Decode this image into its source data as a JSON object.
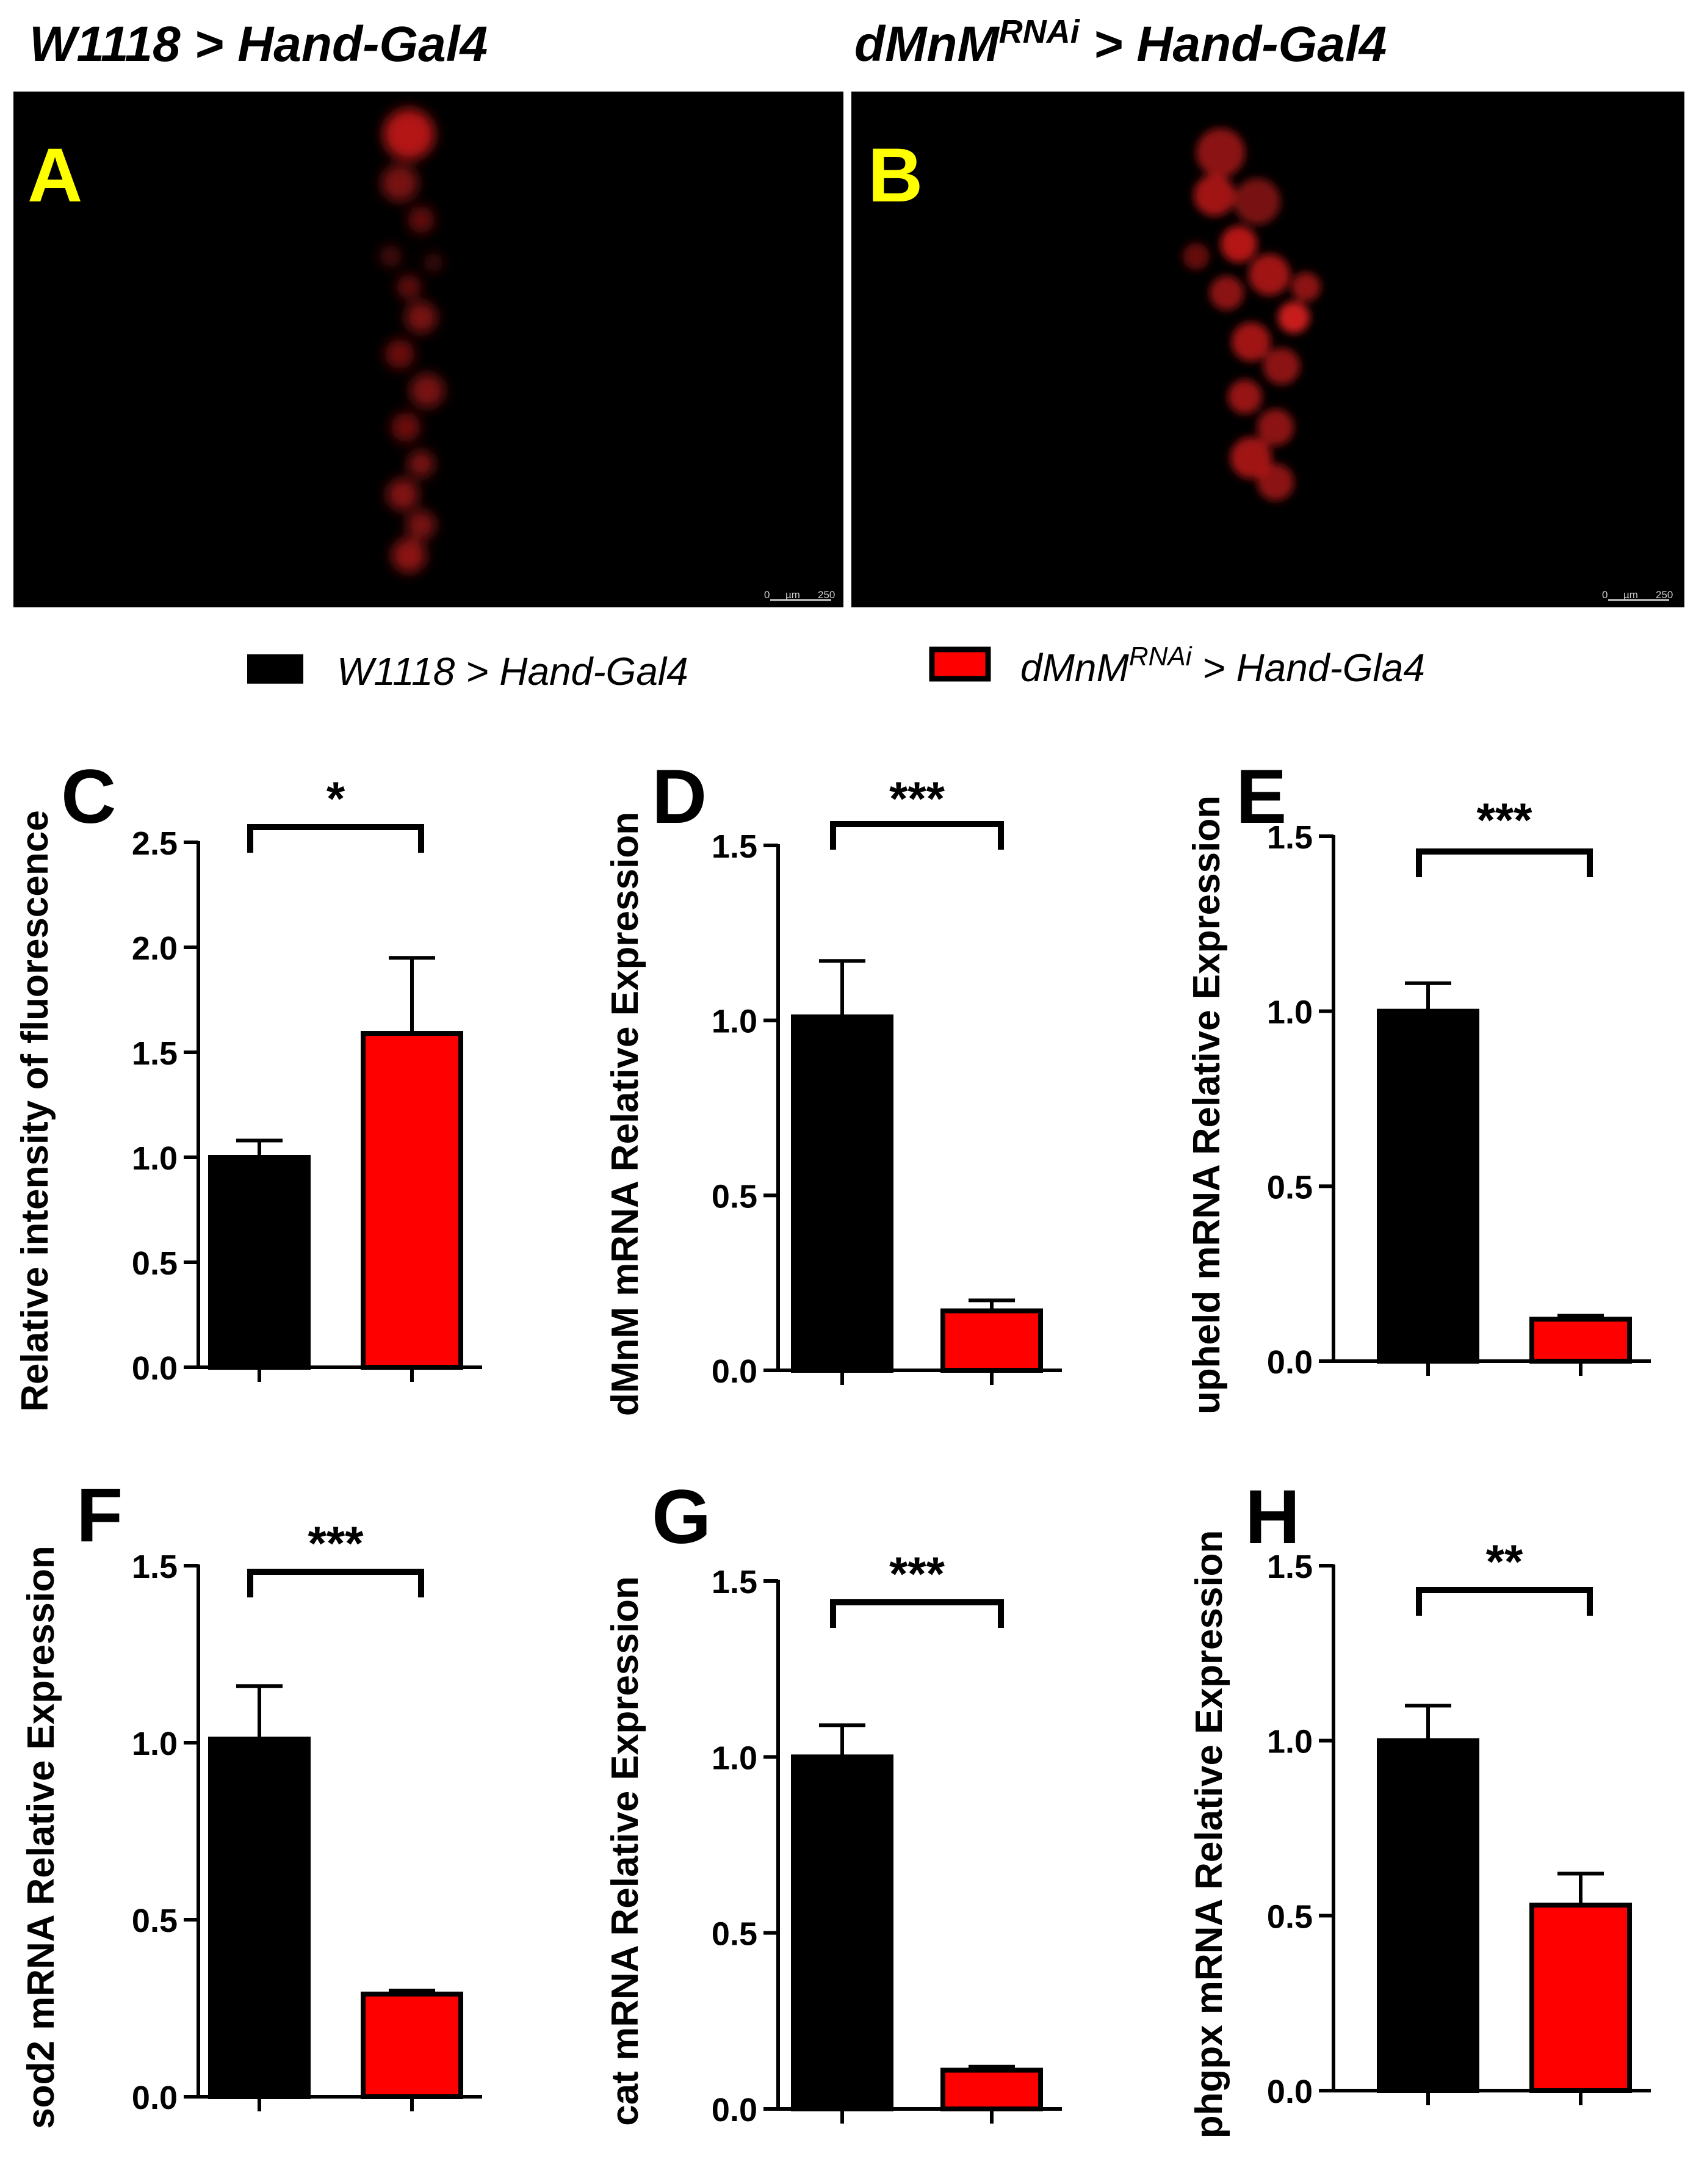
{
  "images": [
    {
      "title_main": "W1118 > Hand-Gal4",
      "title_sup": "",
      "title_rest": "",
      "letter": "A",
      "scale": {
        "left": "0",
        "unit": "µm",
        "right": "250"
      }
    },
    {
      "title_main": "dMnM",
      "title_sup": "RNAi",
      "title_rest": " > Hand-Gal4",
      "letter": "B",
      "scale": {
        "left": "0",
        "unit": "µm",
        "right": "250"
      }
    }
  ],
  "legend": [
    {
      "label_main": "W1118 > Hand-Gal4",
      "label_sup": "",
      "label_rest": "",
      "color": "#000000"
    },
    {
      "label_main": "dMnM",
      "label_sup": "RNAi",
      "label_rest": " > Hand-Gla4",
      "color": "#ff0000"
    }
  ],
  "colors": {
    "control": "#000000",
    "rnai": "#ff0000",
    "letter_image": "#ffff00",
    "letter_chart": "#000000",
    "fluorescence": "#c81a1a"
  },
  "chart_data": [
    {
      "type": "bar",
      "letter": "C",
      "ylabel": "Relative intensity of fluorescence",
      "ylim": [
        0,
        2.5
      ],
      "yticks": [
        "0.0",
        "0.5",
        "1.0",
        "1.5",
        "2.0",
        "2.5"
      ],
      "values": [
        1.0,
        1.59
      ],
      "errors": [
        0.08,
        0.36
      ],
      "significance": "*"
    },
    {
      "type": "bar",
      "letter": "D",
      "ylabel": "dMnM mRNA Relative Expression",
      "ylim": [
        0,
        1.5
      ],
      "yticks": [
        "0.0",
        "0.5",
        "1.0",
        "1.5"
      ],
      "values": [
        1.01,
        0.17
      ],
      "errors": [
        0.16,
        0.03
      ],
      "significance": "***"
    },
    {
      "type": "bar",
      "letter": "E",
      "ylabel": "upheld mRNA Relative Expression",
      "ylim": [
        0,
        1.5
      ],
      "yticks": [
        "0.0",
        "0.5",
        "1.0",
        "1.5"
      ],
      "values": [
        1.0,
        0.12
      ],
      "errors": [
        0.08,
        0.01
      ],
      "significance": "***"
    },
    {
      "type": "bar",
      "letter": "F",
      "ylabel": "sod2 mRNA Relative Expression",
      "ylim": [
        0,
        1.5
      ],
      "yticks": [
        "0.0",
        "0.5",
        "1.0",
        "1.5"
      ],
      "values": [
        1.01,
        0.29
      ],
      "errors": [
        0.15,
        0.01
      ],
      "significance": "***"
    },
    {
      "type": "bar",
      "letter": "G",
      "ylabel": "cat mRNA Relative Expression",
      "ylim": [
        0,
        1.5
      ],
      "yticks": [
        "0.0",
        "0.5",
        "1.0",
        "1.5"
      ],
      "values": [
        1.0,
        0.11
      ],
      "errors": [
        0.09,
        0.01
      ],
      "significance": "***"
    },
    {
      "type": "bar",
      "letter": "H",
      "ylabel": "phgpx mRNA Relative Expression",
      "ylim": [
        0,
        1.5
      ],
      "yticks": [
        "0.0",
        "0.5",
        "1.0",
        "1.5"
      ],
      "values": [
        1.0,
        0.53
      ],
      "errors": [
        0.1,
        0.09
      ],
      "significance": "**"
    }
  ]
}
